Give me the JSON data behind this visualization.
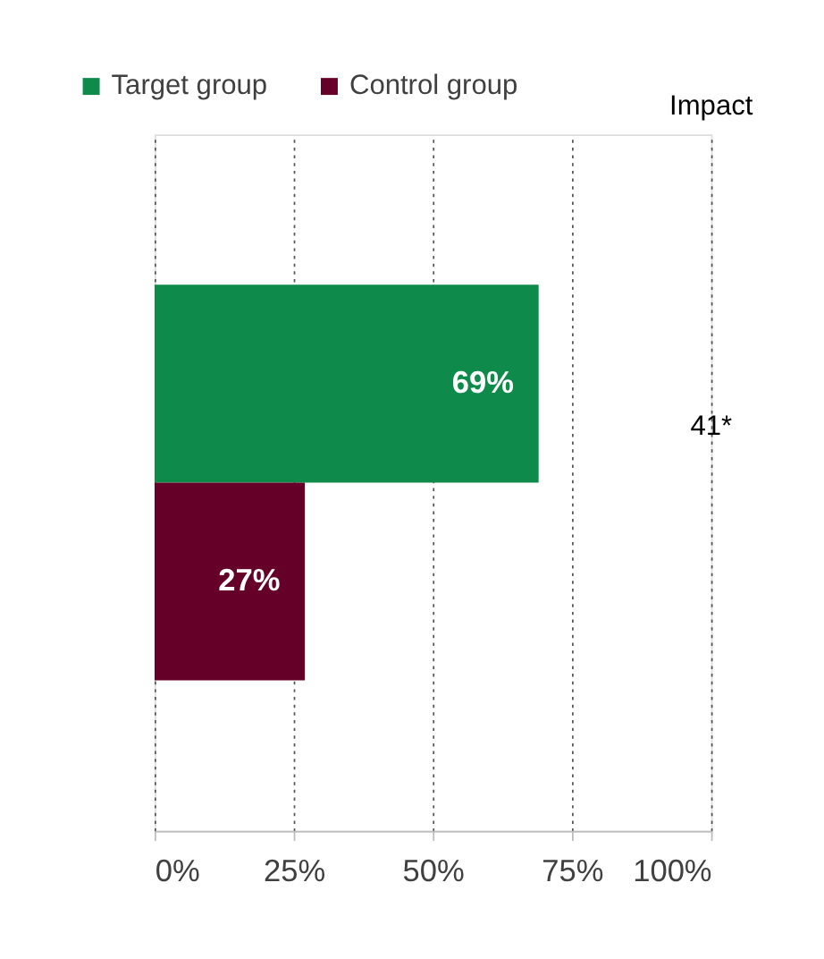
{
  "chart_data": {
    "type": "bar",
    "orientation": "horizontal",
    "categories": [
      null
    ],
    "series": [
      {
        "name": "Target group",
        "color": "#0e8a4a",
        "values": [
          69
        ],
        "value_labels": [
          "69%"
        ]
      },
      {
        "name": "Control group",
        "color": "#650028",
        "values": [
          27
        ],
        "value_labels": [
          "27%"
        ]
      }
    ],
    "xlim": [
      0,
      100
    ],
    "xticks": [
      {
        "value": 0,
        "label": "0%"
      },
      {
        "value": 25,
        "label": "25%"
      },
      {
        "value": 50,
        "label": "50%"
      },
      {
        "value": 75,
        "label": "75%"
      },
      {
        "value": 100,
        "label": "100%"
      }
    ],
    "grid": "x",
    "legend": "top left",
    "annotations": [
      "Impact",
      "41*"
    ]
  }
}
